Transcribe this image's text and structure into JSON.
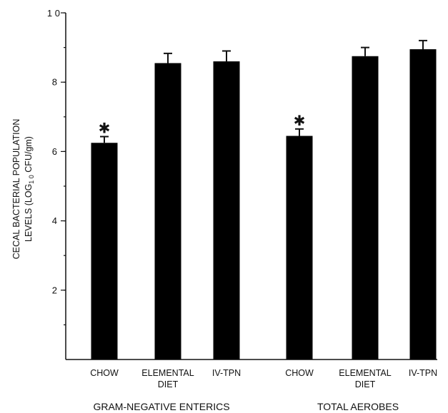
{
  "chart_data": {
    "type": "bar",
    "title": "",
    "ylabel_line1": "CECAL BACTERIAL POPULATION",
    "ylabel_line2_prefix": "LEVELS (LOG",
    "ylabel_line2_sub": "1 0",
    "ylabel_line2_suffix": " CFU/gm)",
    "ylim": [
      0,
      10
    ],
    "yticks": [
      2,
      4,
      6,
      8
    ],
    "ytick_labels": [
      "2",
      "4",
      "6",
      "8"
    ],
    "ymax_label": "1 0",
    "grid": false,
    "significance_marker": "✱",
    "groups": [
      {
        "name": "GRAM-NEGATIVE ENTERICS",
        "bars": [
          {
            "label": [
              "CHOW"
            ],
            "value": 6.25,
            "error": 0.18,
            "significant": true
          },
          {
            "label": [
              "ELEMENTAL",
              "DIET"
            ],
            "value": 8.55,
            "error": 0.28,
            "significant": false
          },
          {
            "label": [
              "IV-TPN"
            ],
            "value": 8.6,
            "error": 0.3,
            "significant": false
          }
        ]
      },
      {
        "name": "TOTAL AEROBES",
        "bars": [
          {
            "label": [
              "CHOW"
            ],
            "value": 6.45,
            "error": 0.2,
            "significant": true
          },
          {
            "label": [
              "ELEMENTAL",
              "DIET"
            ],
            "value": 8.75,
            "error": 0.25,
            "significant": false
          },
          {
            "label": [
              "IV-TPN"
            ],
            "value": 8.95,
            "error": 0.25,
            "significant": false
          }
        ]
      }
    ],
    "bar_color": "#000000"
  }
}
